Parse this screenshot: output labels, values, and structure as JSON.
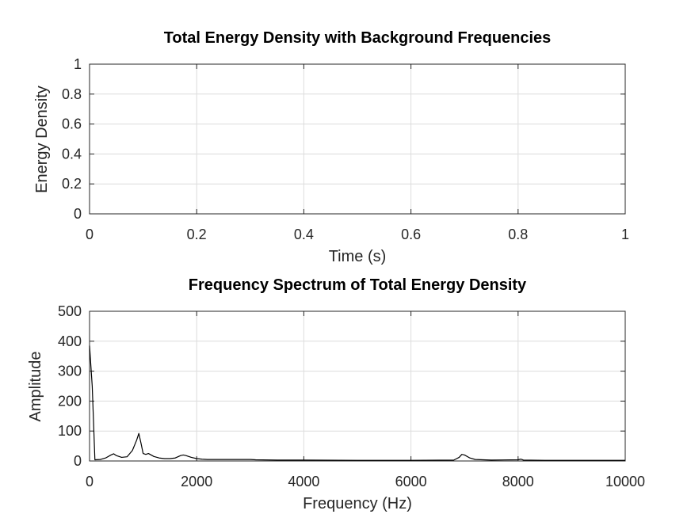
{
  "chart_data": [
    {
      "type": "line",
      "title": "Total Energy Density with Background Frequencies",
      "xlabel": "Time (s)",
      "ylabel": "Energy Density",
      "xlim": [
        0,
        1
      ],
      "ylim": [
        0,
        1
      ],
      "xticks": [
        "0",
        "0.2",
        "0.4",
        "0.6",
        "0.8",
        "1"
      ],
      "yticks": [
        "0",
        "0.2",
        "0.4",
        "0.6",
        "0.8",
        "1"
      ],
      "grid": true,
      "series": [
        {
          "x": [],
          "y": [],
          "color": "#000000"
        }
      ]
    },
    {
      "type": "line",
      "title": "Frequency Spectrum of Total Energy Density",
      "xlabel": "Frequency (Hz)",
      "ylabel": "Amplitude",
      "xlim": [
        0,
        10000
      ],
      "ylim": [
        0,
        500
      ],
      "xticks": [
        "0",
        "2000",
        "4000",
        "6000",
        "8000",
        "10000"
      ],
      "yticks": [
        "0",
        "100",
        "200",
        "300",
        "400",
        "500"
      ],
      "grid": true,
      "series": [
        {
          "color": "#000000",
          "x": [
            0,
            50,
            100,
            200,
            300,
            400,
            450,
            500,
            600,
            700,
            800,
            880,
            920,
            960,
            1000,
            1050,
            1100,
            1200,
            1300,
            1400,
            1500,
            1600,
            1700,
            1750,
            1800,
            1900,
            2000,
            2100,
            2200,
            2500,
            3000,
            3100,
            3500,
            4000,
            5000,
            6000,
            6800,
            6900,
            6950,
            7000,
            7100,
            7200,
            7500,
            8000,
            8050,
            8100,
            8500,
            9000,
            9500,
            10000
          ],
          "y": [
            385,
            250,
            4,
            5,
            10,
            20,
            24,
            18,
            12,
            14,
            35,
            70,
            92,
            60,
            25,
            22,
            25,
            15,
            10,
            8,
            8,
            10,
            18,
            20,
            18,
            12,
            8,
            6,
            5,
            5,
            5,
            4,
            3,
            3,
            2,
            2,
            3,
            12,
            22,
            20,
            10,
            5,
            3,
            4,
            6,
            3,
            2,
            2,
            2,
            2
          ]
        }
      ]
    }
  ]
}
